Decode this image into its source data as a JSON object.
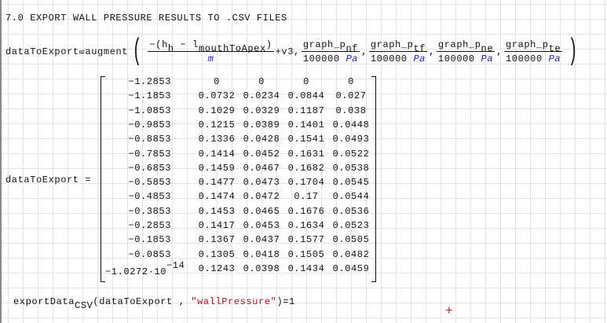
{
  "title": "7.0 EXPORT WALL PRESSURE RESULTS TO .CSV FILES",
  "definition": {
    "lhs": "dataToExport",
    "assign_op": "≔",
    "func": "augment",
    "first_num_minus": "−",
    "h": "h",
    "h_sub": "h",
    "minus": "−",
    "l": "l",
    "l_sub": "mouthToApex",
    "first_den": "m",
    "plus_term": "+v3",
    "fractions": [
      {
        "num": "graph_p",
        "sub": "nf",
        "den": "100000",
        "unit": "Pa"
      },
      {
        "num": "graph_p",
        "sub": "tf",
        "den": "100000",
        "unit": "Pa"
      },
      {
        "num": "graph_p",
        "sub": "ne",
        "den": "100000",
        "unit": "Pa"
      },
      {
        "num": "graph_p",
        "sub": "te",
        "den": "100000",
        "unit": "Pa"
      }
    ]
  },
  "result": {
    "label": "dataToExport =",
    "rows": [
      [
        "−1.2853",
        "0",
        "0",
        "0",
        "0"
      ],
      [
        "−1.1853",
        "0.0732",
        "0.0234",
        "0.0844",
        "0.027"
      ],
      [
        "−1.0853",
        "0.1029",
        "0.0329",
        "0.1187",
        "0.038"
      ],
      [
        "−0.9853",
        "0.1215",
        "0.0389",
        "0.1401",
        "0.0448"
      ],
      [
        "−0.8853",
        "0.1336",
        "0.0428",
        "0.1541",
        "0.0493"
      ],
      [
        "−0.7853",
        "0.1414",
        "0.0452",
        "0.1631",
        "0.0522"
      ],
      [
        "−0.6853",
        "0.1459",
        "0.0467",
        "0.1682",
        "0.0538"
      ],
      [
        "−0.5853",
        "0.1477",
        "0.0473",
        "0.1704",
        "0.0545"
      ],
      [
        "−0.4853",
        "0.1474",
        "0.0472",
        "0.17",
        "0.0544"
      ],
      [
        "−0.3853",
        "0.1453",
        "0.0465",
        "0.1676",
        "0.0536"
      ],
      [
        "−0.2853",
        "0.1417",
        "0.0453",
        "0.1634",
        "0.0523"
      ],
      [
        "−0.1853",
        "0.1367",
        "0.0437",
        "0.1577",
        "0.0505"
      ],
      [
        "−0.0853",
        "0.1305",
        "0.0418",
        "0.1505",
        "0.0482"
      ],
      [
        "−1.0272·10",
        "0.1243",
        "0.0398",
        "0.1434",
        "0.0459"
      ]
    ],
    "last_exponent": "−14"
  },
  "export": {
    "func": "exportData",
    "func_sub": "CSV",
    "arg1": "dataToExport",
    "arg2": "\"wallPressure\"",
    "result": "=1"
  },
  "cursor_icon": "red-crosshair-plus"
}
